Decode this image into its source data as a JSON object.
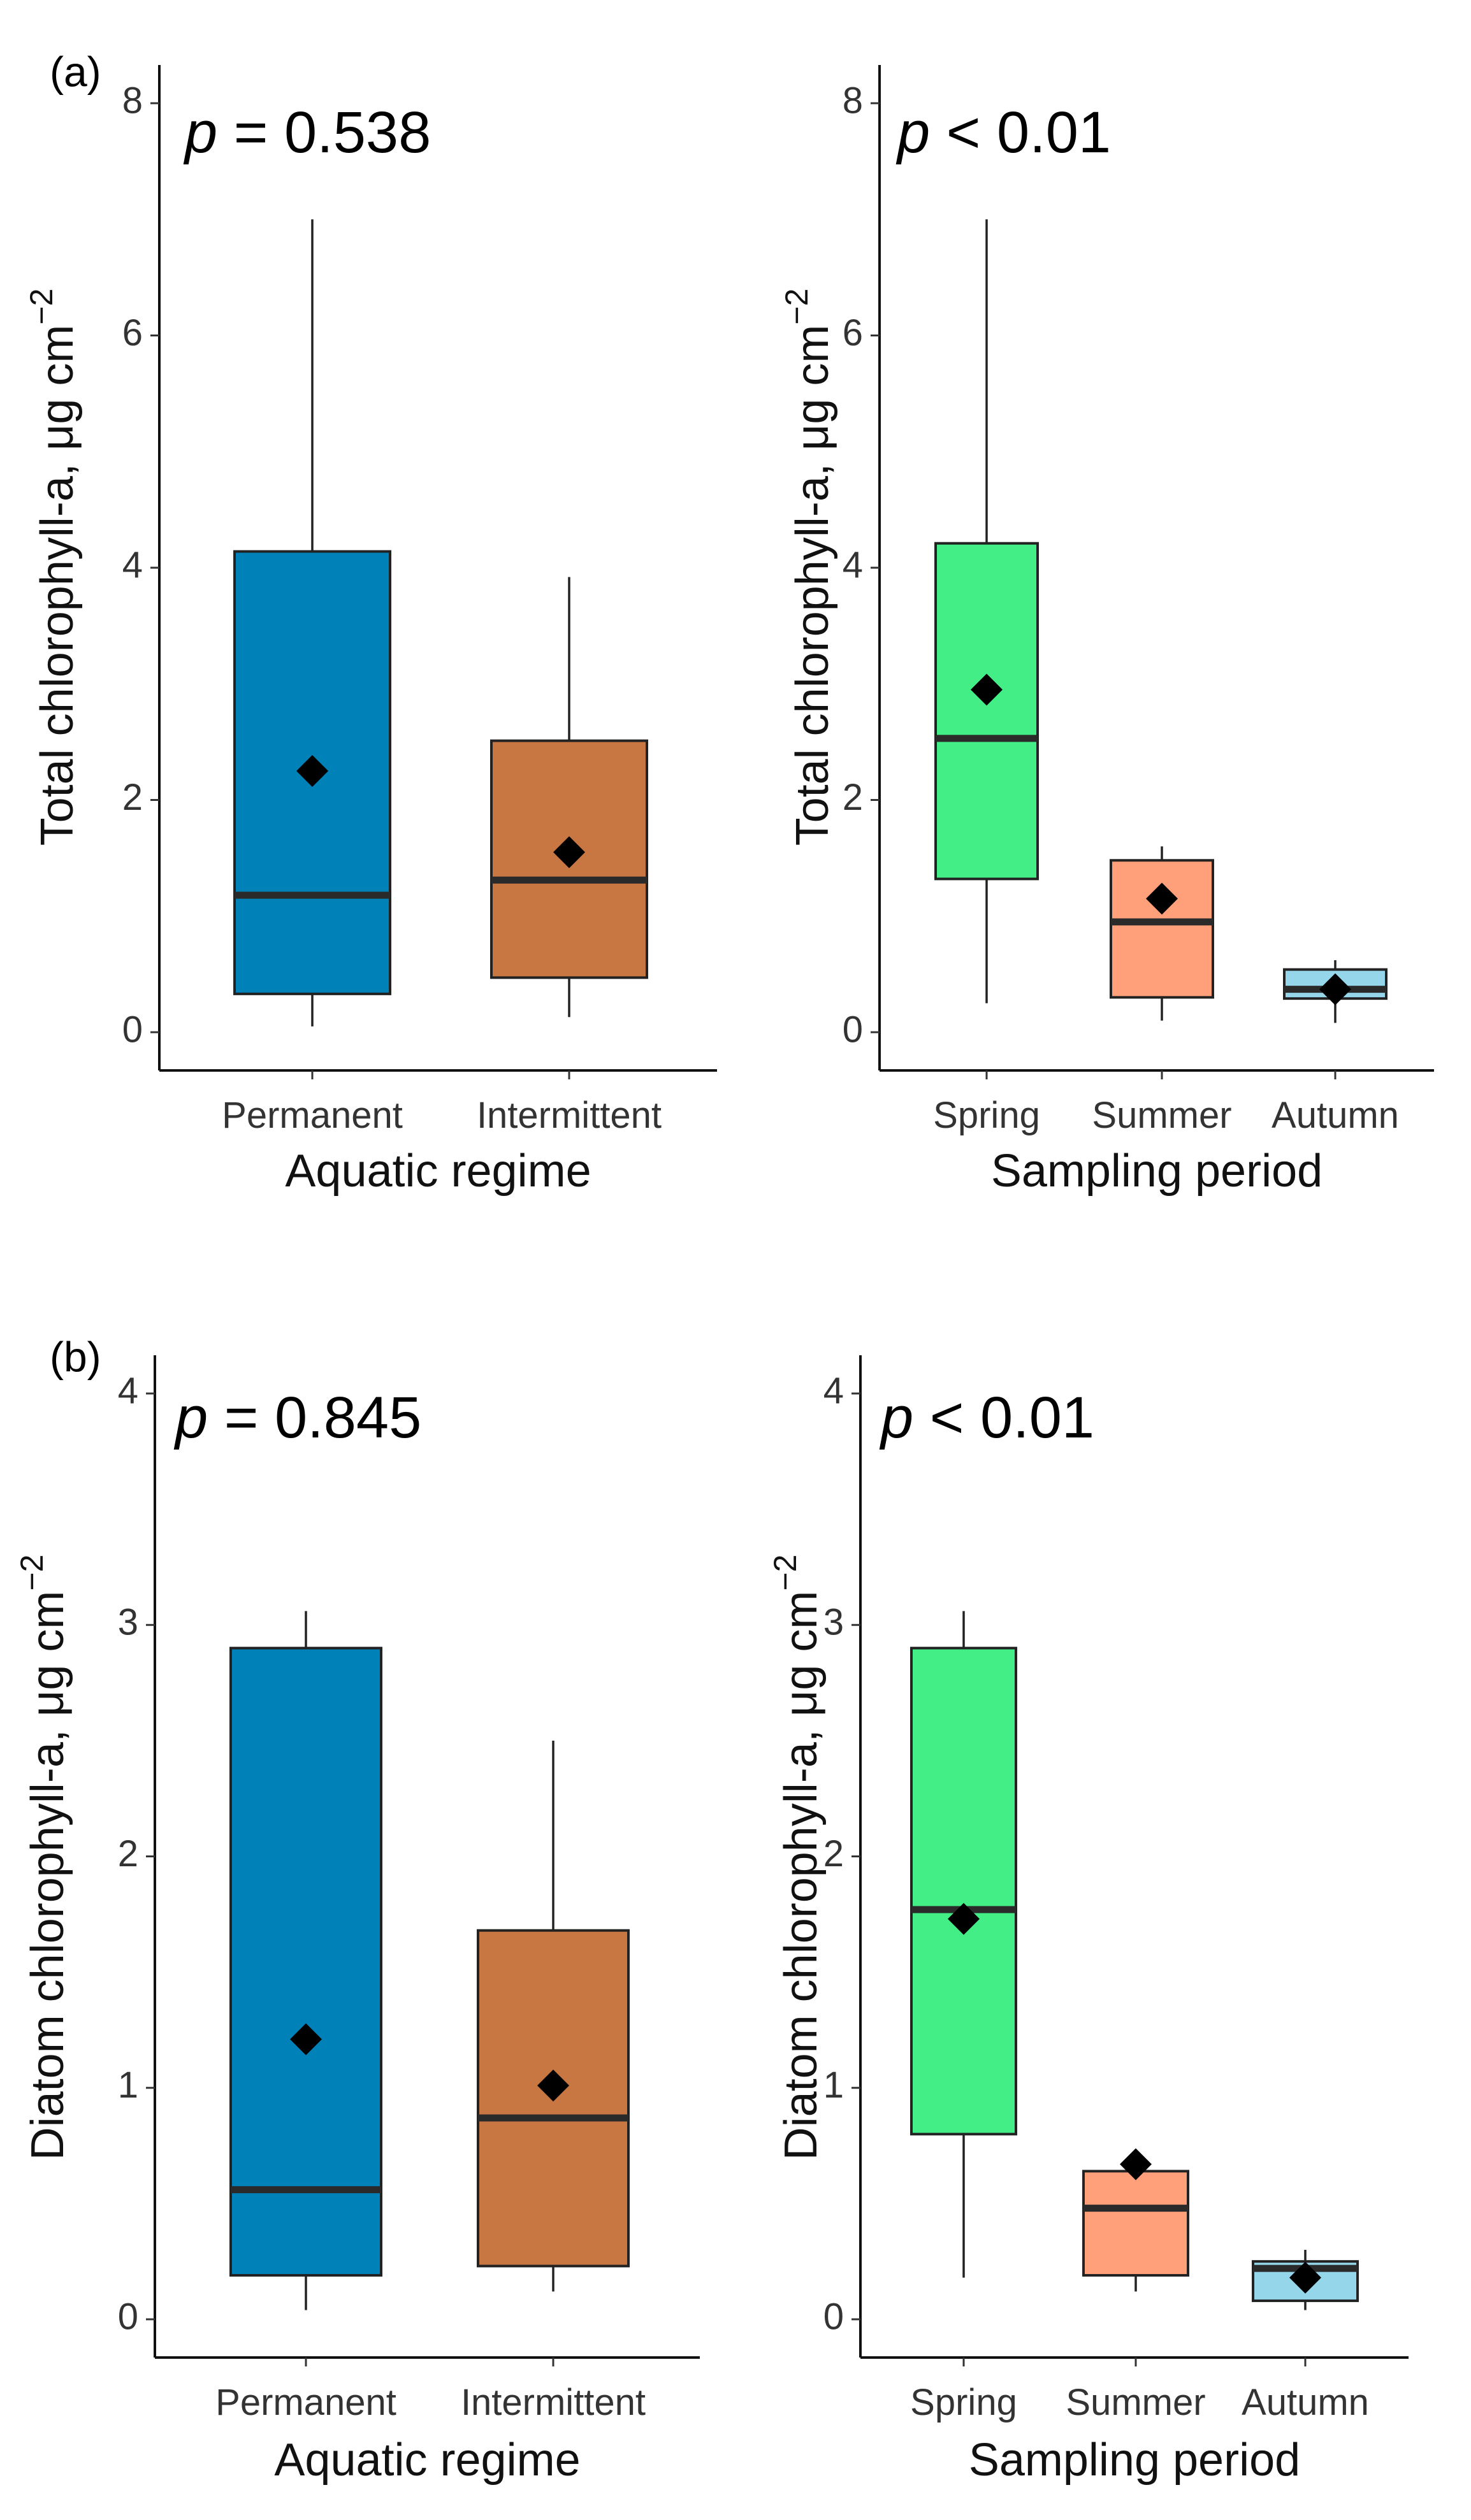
{
  "figure": {
    "colors": {
      "Permanent": "#0081B8",
      "Intermittent": "#C87642",
      "Spring": "#43EE87",
      "Summer": "#FFA07A",
      "Autumn": "#95D6EA",
      "median": "#2a2a2a",
      "whisker": "#222222",
      "mean_marker": "#000000"
    }
  },
  "chart_data": [
    {
      "type": "box",
      "panel": "(a)",
      "p_label": "p",
      "p_text": "= 0.538",
      "title": "",
      "xlabel": "Aquatic regime",
      "ylabel_main": "Total chlorophyll-a,  μg cm",
      "ylabel_sup": "−2",
      "ylim": [
        0,
        8
      ],
      "yticks": [
        "0",
        "2",
        "4",
        "6",
        "8"
      ],
      "categories": [
        "Permanent",
        "Intermittent"
      ],
      "boxes": [
        {
          "name": "Permanent",
          "min": 0.05,
          "q1": 0.33,
          "median": 1.18,
          "q3": 4.14,
          "max": 7.0,
          "mean": 2.25
        },
        {
          "name": "Intermittent",
          "min": 0.13,
          "q1": 0.47,
          "median": 1.31,
          "q3": 2.51,
          "max": 3.92,
          "mean": 1.55
        }
      ]
    },
    {
      "type": "box",
      "panel": "",
      "p_label": "p",
      "p_text": "< 0.01",
      "title": "",
      "xlabel": "Sampling period",
      "ylabel_main": "Total chlorophyll-a,  μg cm",
      "ylabel_sup": "−2",
      "ylim": [
        0,
        8
      ],
      "yticks": [
        "0",
        "2",
        "4",
        "6",
        "8"
      ],
      "categories": [
        "Spring",
        "Summer",
        "Autumn"
      ],
      "boxes": [
        {
          "name": "Spring",
          "min": 0.25,
          "q1": 1.32,
          "median": 2.53,
          "q3": 4.21,
          "max": 7.0,
          "mean": 2.95
        },
        {
          "name": "Summer",
          "min": 0.1,
          "q1": 0.3,
          "median": 0.95,
          "q3": 1.48,
          "max": 1.6,
          "mean": 1.15
        },
        {
          "name": "Autumn",
          "min": 0.08,
          "q1": 0.29,
          "median": 0.37,
          "q3": 0.54,
          "max": 0.62,
          "mean": 0.37
        }
      ]
    },
    {
      "type": "box",
      "panel": "(b)",
      "p_label": "p",
      "p_text": "= 0.845",
      "title": "",
      "xlabel": "Aquatic regime",
      "ylabel_main": "Diatom chlorophyll-a,  μg cm",
      "ylabel_sup": "−2",
      "ylim": [
        0,
        4
      ],
      "yticks": [
        "0",
        "1",
        "2",
        "3",
        "4"
      ],
      "categories": [
        "Permanent",
        "Intermittent"
      ],
      "boxes": [
        {
          "name": "Permanent",
          "min": 0.04,
          "q1": 0.19,
          "median": 0.56,
          "q3": 2.9,
          "max": 3.06,
          "mean": 1.21
        },
        {
          "name": "Intermittent",
          "min": 0.12,
          "q1": 0.23,
          "median": 0.87,
          "q3": 1.68,
          "max": 2.5,
          "mean": 1.01
        }
      ]
    },
    {
      "type": "box",
      "panel": "",
      "p_label": "p",
      "p_text": "< 0.01",
      "title": "",
      "xlabel": "Sampling period",
      "ylabel_main": "Diatom chlorophyll-a,  μg cm",
      "ylabel_sup": "−2",
      "ylim": [
        0,
        4
      ],
      "yticks": [
        "0",
        "1",
        "2",
        "3",
        "4"
      ],
      "categories": [
        "Spring",
        "Summer",
        "Autumn"
      ],
      "boxes": [
        {
          "name": "Spring",
          "min": 0.18,
          "q1": 0.8,
          "median": 1.77,
          "q3": 2.9,
          "max": 3.06,
          "mean": 1.73
        },
        {
          "name": "Summer",
          "min": 0.12,
          "q1": 0.19,
          "median": 0.48,
          "q3": 0.64,
          "max": 0.64,
          "mean": 0.67
        },
        {
          "name": "Autumn",
          "min": 0.04,
          "q1": 0.08,
          "median": 0.22,
          "q3": 0.25,
          "max": 0.3,
          "mean": 0.18
        }
      ]
    }
  ]
}
